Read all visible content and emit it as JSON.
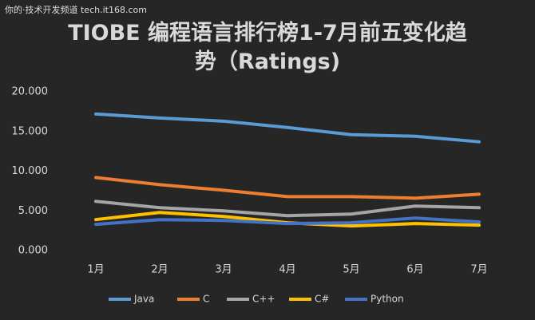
{
  "watermark": "你的·技术开发频道 tech.it168.com",
  "chart_data": {
    "type": "line",
    "title": "TIOBE 编程语言排行榜1-7月前五变化趋势（Ratings)",
    "categories": [
      "1月",
      "2月",
      "3月",
      "4月",
      "5月",
      "6月",
      "7月"
    ],
    "series": [
      {
        "name": "Java",
        "color": "#5b9bd5",
        "values": [
          17.2,
          16.7,
          16.3,
          15.5,
          14.6,
          14.4,
          13.7
        ]
      },
      {
        "name": "C",
        "color": "#ed7d31",
        "values": [
          9.2,
          8.3,
          7.6,
          6.8,
          6.8,
          6.6,
          7.1
        ]
      },
      {
        "name": "C++",
        "color": "#a5a5a5",
        "values": [
          6.2,
          5.4,
          5.0,
          4.4,
          4.6,
          5.6,
          5.4
        ]
      },
      {
        "name": "C#",
        "color": "#ffc000",
        "values": [
          3.9,
          4.8,
          4.3,
          3.5,
          3.1,
          3.4,
          3.2
        ]
      },
      {
        "name": "Python",
        "color": "#4472c4",
        "values": [
          3.3,
          3.9,
          3.8,
          3.4,
          3.5,
          4.1,
          3.6
        ]
      }
    ],
    "ylim": [
      0,
      20
    ],
    "yticks": [
      {
        "value": 0,
        "label": "0.000"
      },
      {
        "value": 5,
        "label": "5.000"
      },
      {
        "value": 10,
        "label": "10.000"
      },
      {
        "value": 15,
        "label": "15.000"
      },
      {
        "value": 20,
        "label": "20.000"
      }
    ],
    "legend": "bottom"
  }
}
